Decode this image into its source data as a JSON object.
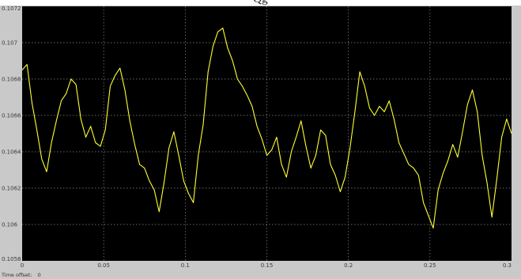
{
  "window": {
    "title_fragment": "Qg",
    "time_offset_label": "Time offset:",
    "time_offset_value": "0"
  },
  "colors": {
    "plot_background": "#000000",
    "frame_background": "#c9c9c9",
    "trace": "#ffff33",
    "grid": "#8a8a8a"
  },
  "chart_data": {
    "type": "line",
    "title": "",
    "xlabel": "",
    "ylabel": "",
    "xlim": [
      0,
      0.3
    ],
    "ylim": [
      0.1058,
      0.1072
    ],
    "grid": true,
    "x_ticks": [
      0,
      0.05,
      0.1,
      0.15,
      0.2,
      0.25,
      0.3
    ],
    "x_tick_labels": [
      "0",
      "0.05",
      "0.1",
      "0.15",
      "0.2",
      "0.25",
      "0.3"
    ],
    "y_ticks": [
      0.1058,
      0.106,
      0.1062,
      0.1064,
      0.1066,
      0.1068,
      0.107,
      0.1072
    ],
    "y_tick_labels": [
      "0.1058",
      "0.106",
      "0.1062",
      "0.1064",
      "0.1066",
      "0.1068",
      "0.107",
      "0.1072"
    ],
    "series": [
      {
        "color": "#ffff33",
        "x": [
          0,
          0.003,
          0.006,
          0.009,
          0.012,
          0.015,
          0.018,
          0.021,
          0.024,
          0.027,
          0.03,
          0.033,
          0.036,
          0.039,
          0.042,
          0.045,
          0.048,
          0.051,
          0.054,
          0.057,
          0.06,
          0.063,
          0.066,
          0.069,
          0.072,
          0.075,
          0.078,
          0.081,
          0.084,
          0.087,
          0.09,
          0.093,
          0.096,
          0.099,
          0.102,
          0.105,
          0.108,
          0.111,
          0.114,
          0.117,
          0.12,
          0.123,
          0.126,
          0.129,
          0.132,
          0.135,
          0.138,
          0.141,
          0.144,
          0.147,
          0.15,
          0.153,
          0.156,
          0.159,
          0.162,
          0.165,
          0.168,
          0.171,
          0.174,
          0.177,
          0.18,
          0.183,
          0.186,
          0.189,
          0.192,
          0.195,
          0.198,
          0.201,
          0.204,
          0.207,
          0.21,
          0.213,
          0.216,
          0.219,
          0.222,
          0.225,
          0.228,
          0.231,
          0.234,
          0.237,
          0.24,
          0.243,
          0.246,
          0.249,
          0.252,
          0.255,
          0.258,
          0.261,
          0.264,
          0.267,
          0.27,
          0.273,
          0.276,
          0.279,
          0.282,
          0.285,
          0.288,
          0.291,
          0.294,
          0.297,
          0.3
        ],
        "values": [
          0.10685,
          0.10688,
          0.10667,
          0.10652,
          0.10636,
          0.10629,
          0.10645,
          0.10657,
          0.10668,
          0.10672,
          0.1068,
          0.10677,
          0.10658,
          0.10648,
          0.10654,
          0.10645,
          0.10643,
          0.10652,
          0.10676,
          0.10682,
          0.10686,
          0.10674,
          0.10657,
          0.10644,
          0.10633,
          0.10631,
          0.10624,
          0.10619,
          0.10607,
          0.10623,
          0.10642,
          0.10651,
          0.10638,
          0.10624,
          0.10617,
          0.10612,
          0.10638,
          0.10655,
          0.10684,
          0.10698,
          0.10706,
          0.10708,
          0.10697,
          0.1069,
          0.1068,
          0.10676,
          0.10671,
          0.10665,
          0.10654,
          0.10647,
          0.10638,
          0.10641,
          0.10648,
          0.10633,
          0.10626,
          0.1064,
          0.10648,
          0.10657,
          0.10643,
          0.10631,
          0.10638,
          0.10652,
          0.10649,
          0.10633,
          0.10627,
          0.10618,
          0.10626,
          0.10642,
          0.10662,
          0.10684,
          0.10676,
          0.10664,
          0.1066,
          0.10665,
          0.10662,
          0.10668,
          0.10658,
          0.10645,
          0.10639,
          0.10633,
          0.10631,
          0.10627,
          0.10612,
          0.10605,
          0.10598,
          0.10619,
          0.10628,
          0.10635,
          0.10644,
          0.10637,
          0.10651,
          0.10666,
          0.10674,
          0.10662,
          0.10638,
          0.10623,
          0.10604,
          0.10625,
          0.10648,
          0.10658,
          0.1065
        ]
      }
    ]
  }
}
